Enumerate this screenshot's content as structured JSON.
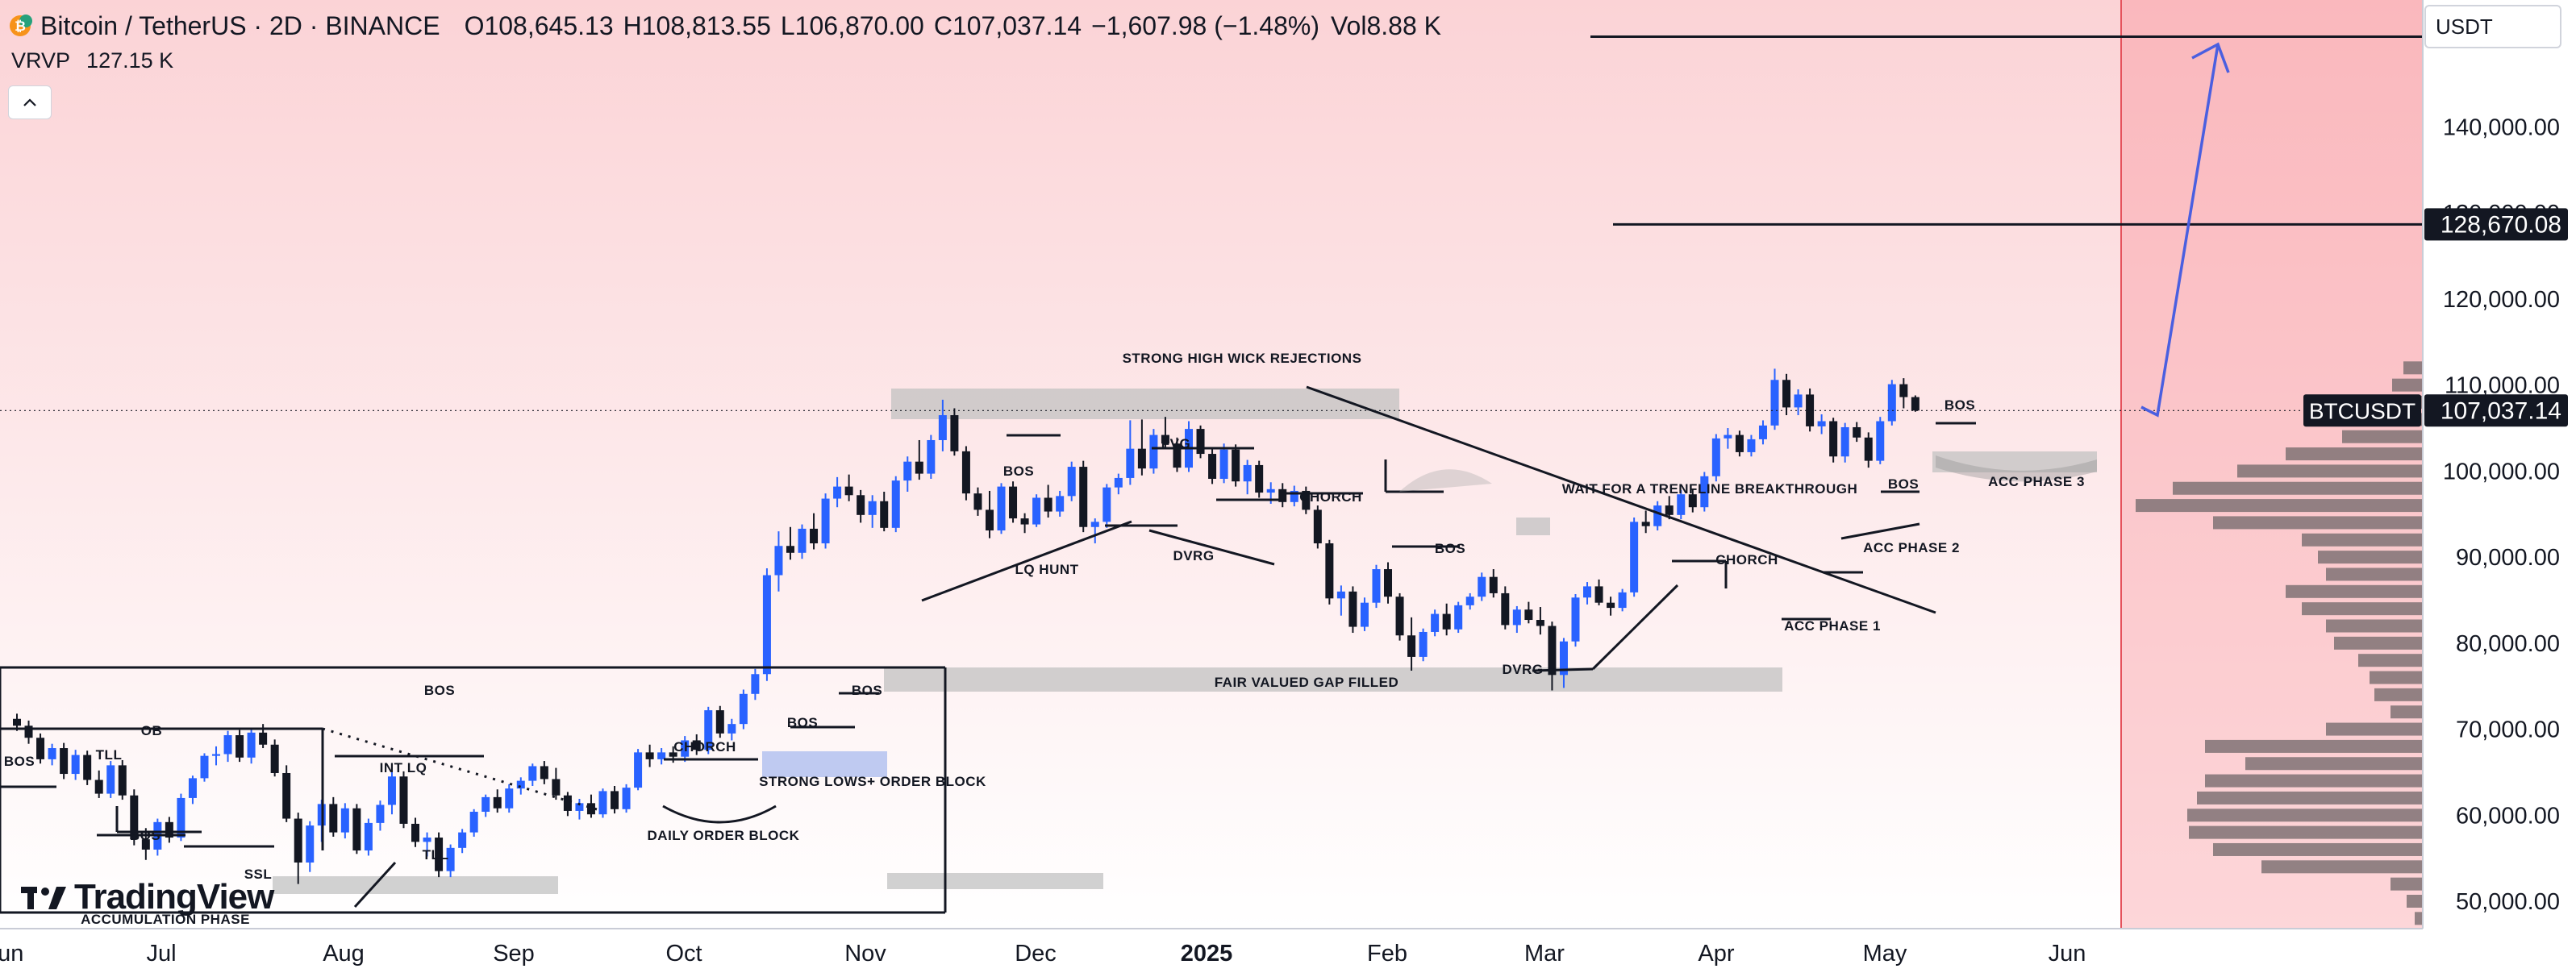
{
  "header": {
    "symbol": "Bitcoin / TetherUS · 2D · BINANCE",
    "open_key": "O",
    "open": "108,645.13",
    "high_key": "H",
    "high": "108,813.55",
    "low_key": "L",
    "low": "106,870.00",
    "close_key": "C",
    "close": "107,037.14",
    "change": "−1,607.98 (−1.48%)",
    "vol_key": "Vol",
    "vol": "8.88 K"
  },
  "vrvp": {
    "label": "VRVP",
    "value": "127.15 K"
  },
  "currency": "USDT",
  "watermark": "TradingView",
  "price_tag": {
    "label": "BTCUSDT",
    "value": "107,037.14"
  },
  "level_tag": {
    "value": "128,670.08"
  },
  "colors": {
    "bull": "#2962ff",
    "bear": "#131722",
    "projection": "#4a5fe0",
    "zone": "#c2c2c2",
    "volume_profile": "#7f7274"
  },
  "chart_data": {
    "type": "candlestick",
    "symbol": "BTCUSDT",
    "timeframe": "2D",
    "x_ticks": [
      "Jun",
      "Jul",
      "Aug",
      "Sep",
      "Oct",
      "Nov",
      "Dec",
      "2025",
      "Feb",
      "Mar",
      "Apr",
      "May",
      "Jun"
    ],
    "y_ticks": [
      "50,000.00",
      "60,000.00",
      "70,000.00",
      "80,000.00",
      "90,000.00",
      "100,000.00",
      "110,000.00",
      "120,000.00",
      "130,000.00",
      "140,000.00"
    ],
    "ylim": [
      47000,
      155000
    ],
    "last_price": 107037.14,
    "horizontal_levels": [
      {
        "price": 128670.08,
        "labeled": true
      },
      {
        "price": 150500,
        "labeled": false
      }
    ],
    "annotations": [
      "OB",
      "BOS",
      "TLL",
      "BOS",
      "BOS",
      "SSL",
      "INT LQ",
      "TLL",
      "ACCUMULATION PHASE",
      "CHORCH",
      "DAILY ORDER BLOCK",
      "BOS",
      "BOS",
      "STRONG LOWS+ ORDER BLOCK",
      "LQ HUNT",
      "BOS",
      "FVG",
      "DVRG",
      "STRONG HIGH WICK REJECTIONS",
      "CHORCH",
      "BOS",
      "WAIT FOR A TRENFLINE BREAKTHROUGH",
      "DVRG",
      "FAIR VALUED GAP FILLED",
      "CHORCH",
      "ACC PHASE 1",
      "ACC PHASE 2",
      "BOS",
      "BOS",
      "ACC PHASE 3"
    ],
    "candles": [
      [
        71200,
        71800,
        69800,
        70400
      ],
      [
        70400,
        71000,
        68300,
        69000
      ],
      [
        69000,
        69500,
        66000,
        66500
      ],
      [
        66500,
        68300,
        65800,
        67800
      ],
      [
        67800,
        68400,
        64200,
        64800
      ],
      [
        64800,
        67600,
        64100,
        67000
      ],
      [
        67000,
        67500,
        63500,
        64100
      ],
      [
        64100,
        65200,
        62000,
        62500
      ],
      [
        62500,
        66300,
        62000,
        65800
      ],
      [
        65800,
        66400,
        61800,
        62300
      ],
      [
        62300,
        63000,
        56500,
        57200
      ],
      [
        57200,
        58500,
        54800,
        56000
      ],
      [
        56000,
        59600,
        55300,
        59200
      ],
      [
        59200,
        59800,
        56800,
        57400
      ],
      [
        57400,
        62500,
        57000,
        62000
      ],
      [
        62000,
        64600,
        61300,
        64300
      ],
      [
        64300,
        67200,
        63900,
        66900
      ],
      [
        66900,
        68000,
        65800,
        67100
      ],
      [
        67100,
        69800,
        66200,
        69300
      ],
      [
        69300,
        69900,
        66200,
        66700
      ],
      [
        66700,
        70000,
        66000,
        69600
      ],
      [
        69600,
        70600,
        67800,
        68200
      ],
      [
        68200,
        68800,
        64500,
        64900
      ],
      [
        64900,
        65800,
        59200,
        59600
      ],
      [
        59600,
        60300,
        52000,
        54500
      ],
      [
        54500,
        59300,
        53400,
        58800
      ],
      [
        58800,
        61800,
        56900,
        61300
      ],
      [
        61300,
        62100,
        57500,
        58000
      ],
      [
        58000,
        61400,
        57300,
        60800
      ],
      [
        60800,
        61300,
        55500,
        55900
      ],
      [
        55900,
        59600,
        55300,
        59100
      ],
      [
        59100,
        61700,
        58200,
        61200
      ],
      [
        61200,
        65000,
        60100,
        64500
      ],
      [
        64500,
        65100,
        58500,
        59000
      ],
      [
        59000,
        59700,
        56300,
        56900
      ],
      [
        56900,
        58000,
        55200,
        57400
      ],
      [
        57400,
        58000,
        52800,
        53500
      ],
      [
        53500,
        56600,
        52800,
        56200
      ],
      [
        56200,
        58400,
        55600,
        58000
      ],
      [
        58000,
        60700,
        57500,
        60400
      ],
      [
        60400,
        62400,
        59800,
        62100
      ],
      [
        62100,
        63000,
        60300,
        60800
      ],
      [
        60800,
        63600,
        60300,
        63100
      ],
      [
        63100,
        64400,
        62400,
        64000
      ],
      [
        64000,
        66000,
        63400,
        65700
      ],
      [
        65700,
        66300,
        63600,
        64200
      ],
      [
        64200,
        65500,
        61800,
        62300
      ],
      [
        62300,
        62700,
        59900,
        60500
      ],
      [
        60500,
        61900,
        59500,
        61400
      ],
      [
        61400,
        62400,
        59700,
        60100
      ],
      [
        60100,
        63100,
        59700,
        62800
      ],
      [
        62800,
        63400,
        60200,
        60700
      ],
      [
        60700,
        63600,
        60300,
        63200
      ],
      [
        63200,
        67700,
        62900,
        67300
      ],
      [
        67300,
        68200,
        65600,
        66500
      ],
      [
        66500,
        67800,
        65900,
        67300
      ],
      [
        67300,
        68000,
        66100,
        66800
      ],
      [
        66800,
        69200,
        66200,
        68700
      ],
      [
        68700,
        69400,
        67000,
        67600
      ],
      [
        67600,
        72600,
        67100,
        72200
      ],
      [
        72200,
        72700,
        69000,
        69500
      ],
      [
        69500,
        71200,
        68700,
        70600
      ],
      [
        70600,
        74600,
        70000,
        74100
      ],
      [
        74100,
        77000,
        73400,
        76400
      ],
      [
        76400,
        88700,
        75600,
        87900
      ],
      [
        87900,
        93000,
        86000,
        91300
      ],
      [
        91300,
        93500,
        89700,
        90500
      ],
      [
        90500,
        93800,
        89800,
        93300
      ],
      [
        93300,
        95100,
        90900,
        91600
      ],
      [
        91600,
        97400,
        91000,
        96800
      ],
      [
        96800,
        99300,
        95800,
        98200
      ],
      [
        98200,
        99600,
        96500,
        97200
      ],
      [
        97200,
        97800,
        94000,
        94900
      ],
      [
        94900,
        97200,
        93400,
        96500
      ],
      [
        96500,
        97600,
        93000,
        93400
      ],
      [
        93400,
        99400,
        92900,
        98900
      ],
      [
        98900,
        101700,
        97600,
        101100
      ],
      [
        101100,
        103600,
        99000,
        99700
      ],
      [
        99700,
        104200,
        99100,
        103600
      ],
      [
        103600,
        108300,
        102300,
        106500
      ],
      [
        106500,
        107300,
        101800,
        102300
      ],
      [
        102300,
        102900,
        96600,
        97400
      ],
      [
        97400,
        98100,
        94800,
        95500
      ],
      [
        95500,
        97700,
        92200,
        93100
      ],
      [
        93100,
        98600,
        92700,
        98200
      ],
      [
        98200,
        98800,
        94000,
        94500
      ],
      [
        94500,
        95100,
        92800,
        93800
      ],
      [
        93800,
        97300,
        93500,
        96900
      ],
      [
        96900,
        98400,
        94600,
        95300
      ],
      [
        95300,
        97700,
        94700,
        97100
      ],
      [
        97100,
        101100,
        96500,
        100500
      ],
      [
        100500,
        101200,
        92900,
        93500
      ],
      [
        93500,
        94500,
        91600,
        94100
      ],
      [
        94100,
        98500,
        93400,
        98100
      ],
      [
        98100,
        99700,
        97300,
        99200
      ],
      [
        99200,
        105900,
        98400,
        102600
      ],
      [
        102600,
        106000,
        99500,
        100300
      ],
      [
        100300,
        104900,
        99700,
        104200
      ],
      [
        104200,
        106300,
        102600,
        103200
      ],
      [
        103200,
        103900,
        99900,
        100400
      ],
      [
        100400,
        105800,
        99900,
        104900
      ],
      [
        104900,
        105300,
        101500,
        102000
      ],
      [
        102000,
        102800,
        98500,
        99100
      ],
      [
        99100,
        103200,
        98600,
        102500
      ],
      [
        102500,
        103100,
        98200,
        98800
      ],
      [
        98800,
        101300,
        97300,
        100700
      ],
      [
        100700,
        101200,
        96900,
        97500
      ],
      [
        97500,
        98700,
        96200,
        97900
      ],
      [
        97900,
        98600,
        95800,
        96400
      ],
      [
        96400,
        98300,
        95900,
        97700
      ],
      [
        97700,
        98200,
        95000,
        95500
      ],
      [
        95500,
        96000,
        91000,
        91600
      ],
      [
        91600,
        92000,
        84500,
        85200
      ],
      [
        85200,
        86700,
        83200,
        86000
      ],
      [
        86000,
        86600,
        81200,
        81900
      ],
      [
        81900,
        85300,
        81400,
        84700
      ],
      [
        84700,
        89100,
        84100,
        88600
      ],
      [
        88600,
        89400,
        84600,
        85400
      ],
      [
        85400,
        85800,
        80300,
        80900
      ],
      [
        80900,
        83000,
        76800,
        78400
      ],
      [
        78400,
        81700,
        77900,
        81300
      ],
      [
        81300,
        83900,
        80800,
        83400
      ],
      [
        83400,
        84600,
        80900,
        81600
      ],
      [
        81600,
        84800,
        81200,
        84400
      ],
      [
        84400,
        85800,
        83900,
        85400
      ],
      [
        85400,
        88200,
        84900,
        87700
      ],
      [
        87700,
        88600,
        85300,
        85800
      ],
      [
        85800,
        86600,
        81600,
        82100
      ],
      [
        82100,
        84300,
        81200,
        83900
      ],
      [
        83900,
        84800,
        82300,
        82700
      ],
      [
        82700,
        84200,
        81000,
        82000
      ],
      [
        82000,
        82500,
        74500,
        76300
      ],
      [
        76300,
        80600,
        74800,
        80200
      ],
      [
        80200,
        85700,
        79600,
        85300
      ],
      [
        85300,
        87100,
        84500,
        86600
      ],
      [
        86600,
        87400,
        84400,
        84700
      ],
      [
        84700,
        85400,
        83200,
        84100
      ],
      [
        84100,
        86300,
        83700,
        85900
      ],
      [
        85900,
        94600,
        85400,
        94100
      ],
      [
        94100,
        95400,
        92800,
        93600
      ],
      [
        93600,
        96500,
        93100,
        96000
      ],
      [
        96000,
        97100,
        94400,
        94900
      ],
      [
        94900,
        97800,
        94400,
        97300
      ],
      [
        97300,
        97900,
        95200,
        95800
      ],
      [
        95800,
        99900,
        95300,
        99400
      ],
      [
        99400,
        104300,
        98800,
        103800
      ],
      [
        103800,
        105000,
        102600,
        104200
      ],
      [
        104200,
        104700,
        101700,
        102200
      ],
      [
        102200,
        104200,
        101700,
        103700
      ],
      [
        103700,
        105900,
        103100,
        105300
      ],
      [
        105300,
        111900,
        104800,
        110600
      ],
      [
        110600,
        111300,
        106500,
        107400
      ],
      [
        107400,
        109500,
        106500,
        108900
      ],
      [
        108900,
        109600,
        104600,
        105200
      ],
      [
        105200,
        106600,
        104300,
        105800
      ],
      [
        105800,
        106200,
        101000,
        101700
      ],
      [
        101700,
        105600,
        101000,
        105100
      ],
      [
        105100,
        105700,
        103400,
        103900
      ],
      [
        103900,
        104500,
        100400,
        101200
      ],
      [
        101200,
        106300,
        100800,
        105800
      ],
      [
        105800,
        110600,
        105300,
        110100
      ],
      [
        110100,
        110800,
        107300,
        108600
      ],
      [
        108600,
        108800,
        106900,
        107037
      ]
    ]
  }
}
